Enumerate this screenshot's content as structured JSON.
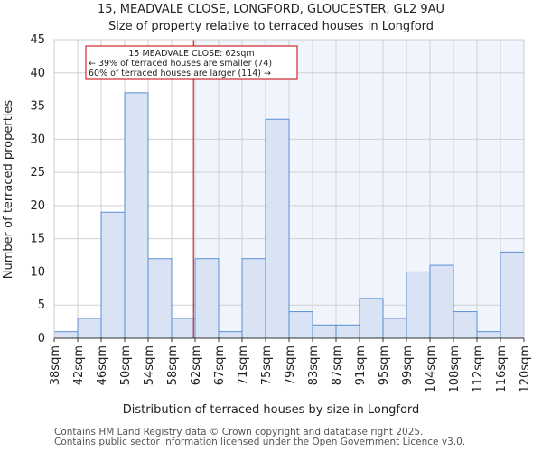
{
  "chart_data": {
    "type": "bar",
    "title": "15, MEADVALE CLOSE, LONGFORD, GLOUCESTER, GL2 9AU",
    "subtitle": "Size of property relative to terraced houses in Longford",
    "xlabel": "Distribution of terraced houses by size in Longford",
    "ylabel": "Number of terraced properties",
    "ylim": [
      0,
      45
    ],
    "yticks": [
      0,
      5,
      10,
      15,
      20,
      25,
      30,
      35,
      40,
      45
    ],
    "bin_edges": [
      "38sqm",
      "42sqm",
      "46sqm",
      "50sqm",
      "54sqm",
      "58sqm",
      "62sqm",
      "67sqm",
      "71sqm",
      "75sqm",
      "79sqm",
      "83sqm",
      "87sqm",
      "91sqm",
      "95sqm",
      "99sqm",
      "104sqm",
      "108sqm",
      "112sqm",
      "116sqm",
      "120sqm"
    ],
    "values": [
      1,
      3,
      19,
      37,
      12,
      3,
      12,
      1,
      12,
      33,
      4,
      2,
      2,
      6,
      3,
      10,
      11,
      4,
      1,
      13
    ],
    "marker_bin_position": 5.93,
    "grid": true,
    "annotation": {
      "line1": "15 MEADVALE CLOSE: 62sqm",
      "line2": "← 39% of terraced houses are smaller (74)",
      "line3": "60% of terraced houses are larger (114) →"
    },
    "colors": {
      "bar": "#dae3f3",
      "edge": "#5a8ed6",
      "marker": "#c00000",
      "highlight_bg": "#f0f4fc"
    }
  },
  "footer": {
    "line1": "Contains HM Land Registry data © Crown copyright and database right 2025.",
    "line2": "Contains public sector information licensed under the Open Government Licence v3.0."
  }
}
